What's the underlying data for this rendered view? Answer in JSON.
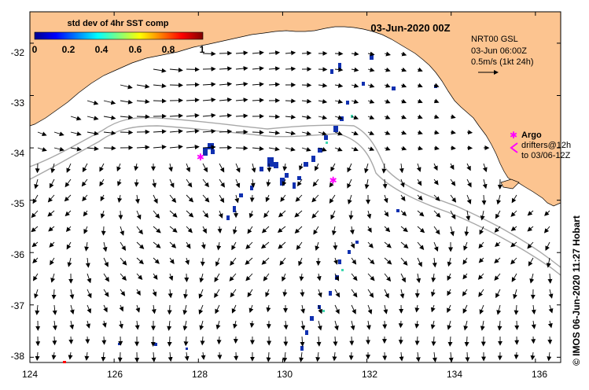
{
  "map": {
    "date_title": "03-Jun-2020 00Z",
    "colorbar": {
      "title": "std dev of 4hr SST comp",
      "ticks": [
        "0",
        "0.2",
        "0.4",
        "0.6",
        "0.8",
        "1"
      ],
      "range": [
        0,
        1
      ]
    },
    "info_lines": [
      "NRT00 GSL",
      "03-Jun 06:00Z",
      "0.5m/s (1kt 24h)"
    ],
    "argo": {
      "label": "Argo",
      "symbol": "✱",
      "drifters_line1": "drifters@12h",
      "drifters_line2": "to 03/06-12Z",
      "floats": [
        {
          "lon": 128.05,
          "lat": -34.18
        },
        {
          "lon": 131.2,
          "lat": -34.62
        }
      ]
    },
    "credit": "© IMOS 06-Jun-2020 11:27 Hobart",
    "lon_ticks": [
      "124",
      "126",
      "128",
      "130",
      "132",
      "134",
      "136"
    ],
    "lat_ticks": [
      "-32",
      "-33",
      "-34",
      "-35",
      "-36",
      "-37",
      "-38"
    ],
    "extent": {
      "lon": [
        124,
        136.6
      ],
      "lat": [
        -38.1,
        -31.4
      ]
    },
    "colors": {
      "land": "#fcc490",
      "sea": "#ffffff",
      "contour": "#a8a8a8",
      "argo": "#ff00ff",
      "sst_patch": "#1030b0",
      "tick_marker": "#ff0000"
    }
  }
}
